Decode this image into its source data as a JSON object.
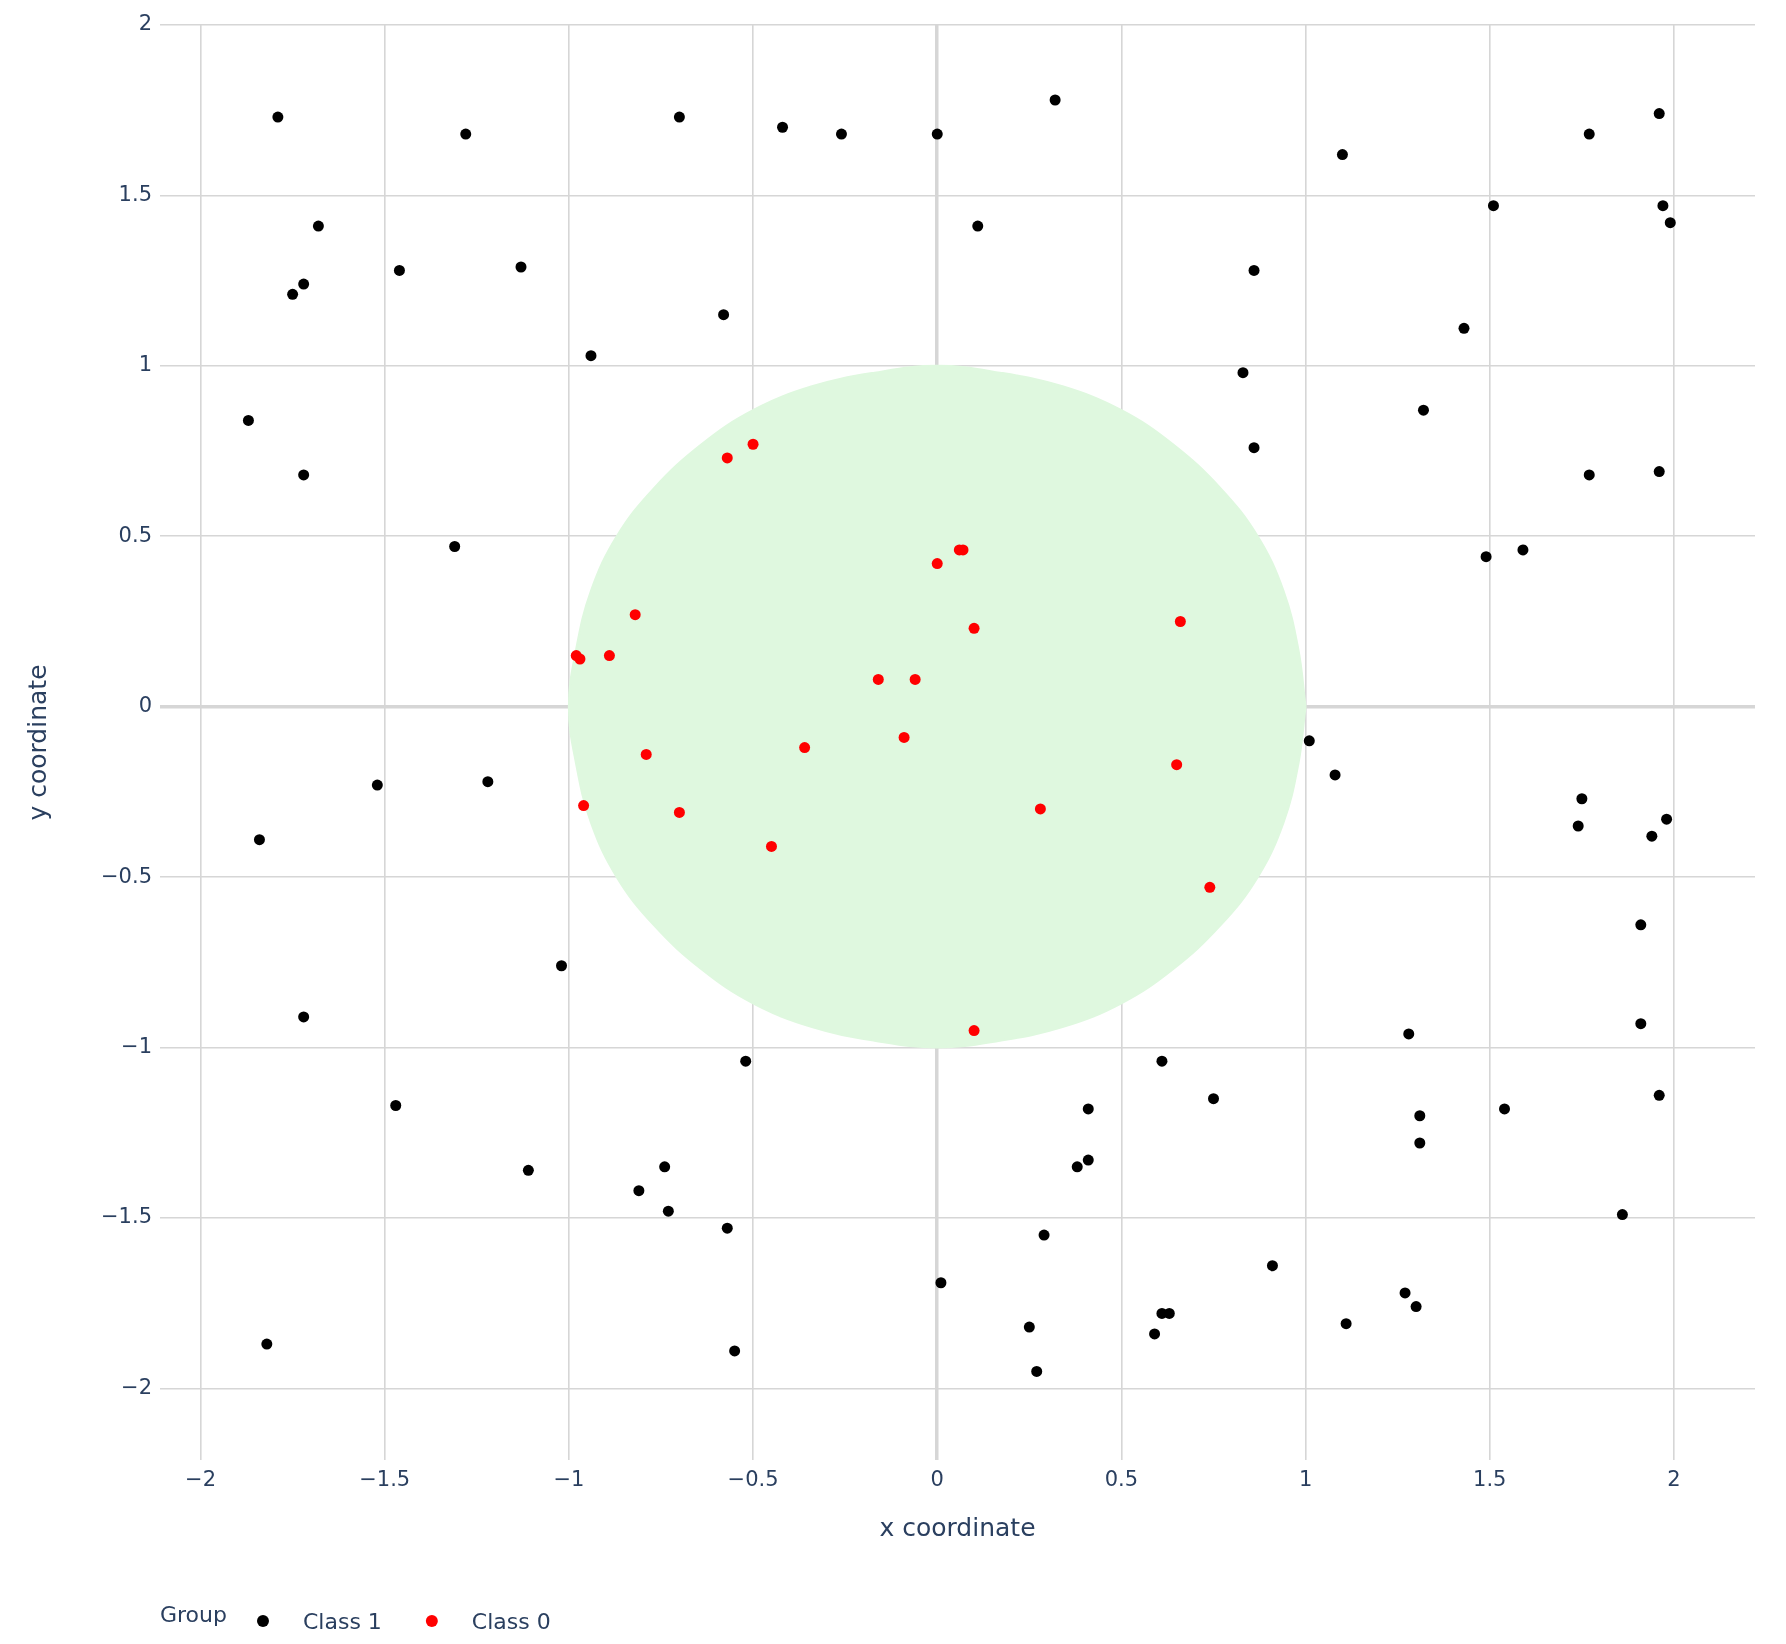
{
  "chart_data": {
    "type": "scatter",
    "xlabel": "x coordinate",
    "ylabel": "y coordinate",
    "legend_title": "Group",
    "legend": "bottom left",
    "grid": true,
    "xlim": [
      -2.11,
      2.22
    ],
    "ylim": [
      -2.21,
      2
    ],
    "xticks": [
      {
        "value": -2,
        "label": "−2"
      },
      {
        "value": -1.5,
        "label": "−1.5"
      },
      {
        "value": -1,
        "label": "−1"
      },
      {
        "value": -0.5,
        "label": "−0.5"
      },
      0,
      0.5,
      1,
      1.5,
      2
    ],
    "yticks": [
      {
        "value": -2,
        "label": "−2"
      },
      {
        "value": -1.5,
        "label": "−1.5"
      },
      {
        "value": -1,
        "label": "−1"
      },
      {
        "value": -0.5,
        "label": "−0.5"
      },
      0,
      0.5,
      1,
      1.5,
      2
    ],
    "series": [
      {
        "name": "Class 1",
        "marker": "circle",
        "color": "#000000",
        "x": [
          -1.79,
          -1.28,
          -1.68,
          -1.75,
          -1.72,
          -1.46,
          -1.13,
          -0.7,
          -0.42,
          -0.26,
          0.0,
          -0.58,
          -0.94,
          -1.87,
          -1.72,
          -1.31,
          0.32,
          0.11,
          1.1,
          1.77,
          1.96,
          1.51,
          1.97,
          1.99,
          0.86,
          1.43,
          0.83,
          1.32,
          0.86,
          1.77,
          1.96,
          1.49,
          1.59,
          -1.52,
          -1.22,
          -1.84,
          -1.02,
          -1.72,
          -0.52,
          -1.47,
          -1.11,
          -0.74,
          -0.81,
          -0.73,
          -0.57,
          0.01,
          -1.82,
          -0.55,
          1.01,
          1.08,
          1.75,
          1.74,
          1.98,
          1.94,
          1.91,
          1.91,
          1.28,
          0.61,
          0.75,
          0.41,
          1.96,
          1.54,
          1.31,
          1.31,
          0.41,
          0.38,
          1.86,
          0.29,
          0.91,
          1.27,
          1.3,
          0.61,
          0.63,
          1.11,
          0.25,
          0.59,
          0.27
        ],
        "values": [
          1.73,
          1.68,
          1.41,
          1.21,
          1.24,
          1.28,
          1.29,
          1.73,
          1.7,
          1.68,
          1.68,
          1.15,
          1.03,
          0.84,
          0.68,
          0.47,
          1.78,
          1.41,
          1.62,
          1.68,
          1.74,
          1.47,
          1.47,
          1.42,
          1.28,
          1.11,
          0.98,
          0.87,
          0.76,
          0.68,
          0.69,
          0.44,
          0.46,
          -0.23,
          -0.22,
          -0.39,
          -0.76,
          -0.91,
          -1.04,
          -1.17,
          -1.36,
          -1.35,
          -1.42,
          -1.48,
          -1.53,
          -1.69,
          -1.87,
          -1.89,
          -0.1,
          -0.2,
          -0.27,
          -0.35,
          -0.33,
          -0.38,
          -0.64,
          -0.93,
          -0.96,
          -1.04,
          -1.15,
          -1.18,
          -1.14,
          -1.18,
          -1.2,
          -1.28,
          -1.33,
          -1.35,
          -1.49,
          -1.55,
          -1.64,
          -1.72,
          -1.76,
          -1.78,
          -1.78,
          -1.81,
          -1.82,
          -1.84,
          -1.95
        ]
      },
      {
        "name": "Class 0",
        "marker": "circle",
        "color": "#ff0000",
        "x": [
          -0.57,
          -0.5,
          -0.82,
          -0.98,
          -0.97,
          -0.89,
          -0.16,
          -0.06,
          0.0,
          0.06,
          0.07,
          0.1,
          0.66,
          -0.79,
          -0.36,
          -0.09,
          -0.96,
          -0.7,
          -0.45,
          0.65,
          0.28,
          0.74,
          0.1
        ],
        "values": [
          0.73,
          0.77,
          0.27,
          0.15,
          0.14,
          0.15,
          0.08,
          0.08,
          0.42,
          0.46,
          0.46,
          0.23,
          0.25,
          -0.14,
          -0.12,
          -0.09,
          -0.29,
          -0.31,
          -0.41,
          -0.17,
          -0.3,
          -0.53,
          -0.95
        ]
      },
      {
        "type": "area",
        "color": "#dff8df",
        "x": [
          1,
          0.98,
          0.94,
          0.87,
          0.77,
          0.64,
          0.5,
          0.34,
          0.17,
          0,
          -0.17,
          -0.34,
          -0.5,
          -0.64,
          -0.77,
          -0.87,
          -0.94,
          -0.98,
          -1,
          -0.98,
          -0.94,
          -0.87,
          -0.77,
          -0.64,
          -0.5,
          -0.34,
          -0.17,
          0,
          0.17,
          0.34,
          0.5,
          0.64,
          0.77,
          0.87,
          0.94,
          0.98,
          1
        ],
        "values": [
          0,
          0.17,
          0.34,
          0.5,
          0.64,
          0.77,
          0.87,
          0.94,
          0.98,
          1,
          0.98,
          0.94,
          0.87,
          0.77,
          0.64,
          0.5,
          0.34,
          0.17,
          0,
          -0.17,
          -0.34,
          -0.5,
          -0.64,
          -0.77,
          -0.87,
          -0.94,
          -0.98,
          -1,
          -0.98,
          -0.94,
          -0.87,
          -0.77,
          -0.64,
          -0.5,
          -0.34,
          -0.17,
          0
        ]
      }
    ]
  }
}
